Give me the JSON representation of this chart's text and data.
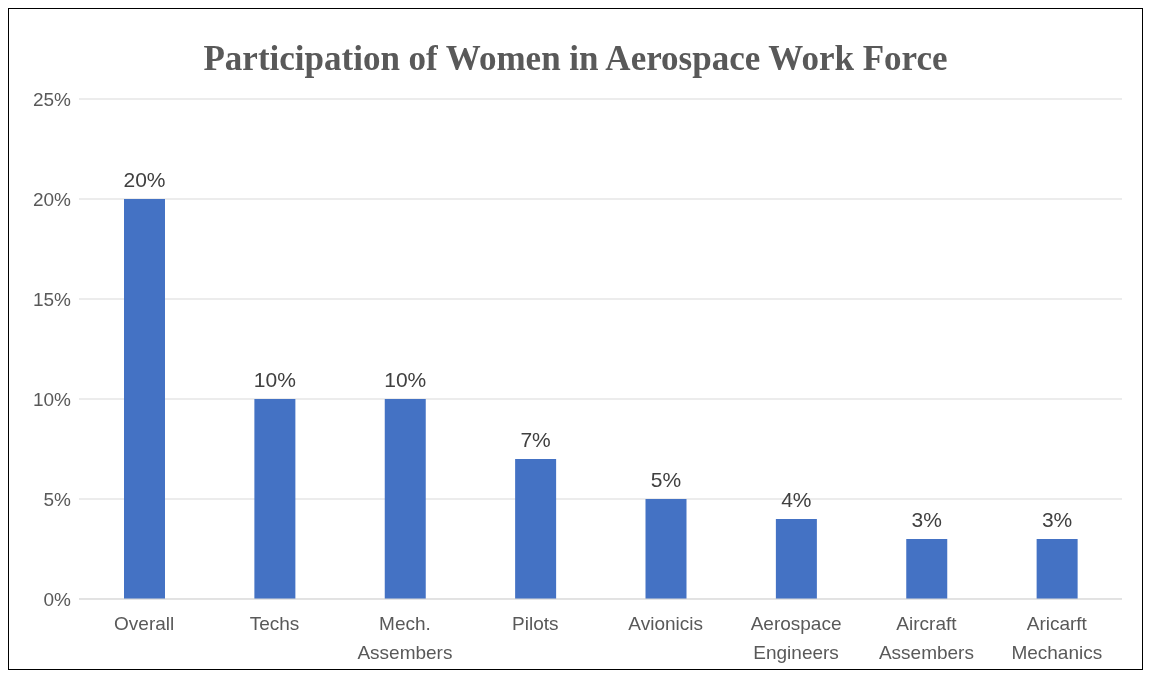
{
  "chart_data": {
    "type": "bar",
    "title": "Participation of Women in Aerospace Work Force",
    "categories": [
      "Overall",
      "Techs",
      "Mech. Assembers",
      "Pilots",
      "Avionicis",
      "Aerospace Engineers",
      "Aircraft Assembers",
      "Aricarft Mechanics"
    ],
    "values": [
      20,
      10,
      10,
      7,
      5,
      4,
      3,
      3
    ],
    "value_labels": [
      "20%",
      "10%",
      "10%",
      "7%",
      "5%",
      "4%",
      "3%",
      "3%"
    ],
    "color": "#4472c4",
    "ylim": [
      0,
      25
    ],
    "yticks": [
      {
        "value": 0,
        "label": "0%"
      },
      {
        "value": 5,
        "label": "5%"
      },
      {
        "value": 10,
        "label": "10%"
      },
      {
        "value": 15,
        "label": "15%"
      },
      {
        "value": 20,
        "label": "20%"
      },
      {
        "value": 25,
        "label": "25%"
      }
    ],
    "grid": "y",
    "legend": false
  }
}
